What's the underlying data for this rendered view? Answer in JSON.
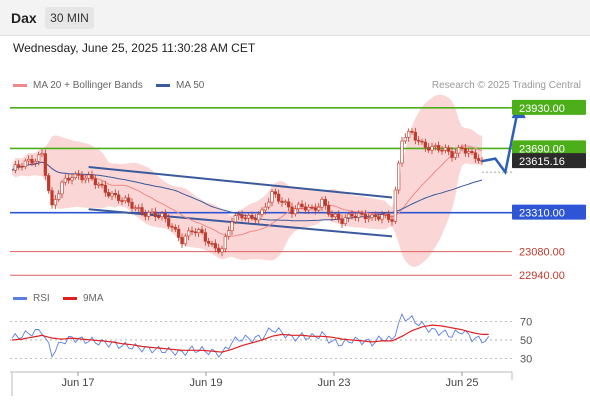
{
  "header": {
    "symbol": "Dax",
    "timeframe": "30 MIN"
  },
  "datetime": "Wednesday, June 25, 2025 11:30:28 AM CET",
  "credit": "Research © 2025 Trading Central",
  "colors": {
    "resistance": "#4caf1a",
    "pivot": "#2d55d6",
    "support": "#e06060",
    "candle": "#c0392b",
    "ma50": "#3a5a9c",
    "bollinger": "#f8c8c8",
    "channel": "#3a5a9c",
    "arrow": "#2d5fb8",
    "rsi": "#5a7fe0",
    "rsi_ma": "#e02020"
  },
  "chart_data": {
    "type": "candlestick",
    "timeframe": "30 MIN",
    "x_labels": [
      "Jun 17",
      "Jun 19",
      "Jun 23",
      "Jun 25"
    ],
    "legend": [
      "MA 20 + Bollinger Bands",
      "MA 50"
    ],
    "ylim": [
      22900,
      24000
    ],
    "levels": [
      {
        "value": 23930.0,
        "label": "23930.00",
        "type": "resistance"
      },
      {
        "value": 23690.0,
        "label": "23690.00",
        "type": "resistance"
      },
      {
        "value": 23615.16,
        "label": "23615.16",
        "type": "last"
      },
      {
        "value": 23310.0,
        "label": "23310.00",
        "type": "pivot"
      },
      {
        "value": 23080.0,
        "label": "23080.00",
        "type": "support"
      },
      {
        "value": 22940.0,
        "label": "22940.00",
        "type": "support"
      }
    ],
    "close_path": [
      [
        0,
        23560
      ],
      [
        3,
        23590
      ],
      [
        6,
        23620
      ],
      [
        9,
        23660
      ],
      [
        12,
        23330
      ],
      [
        15,
        23480
      ],
      [
        18,
        23540
      ],
      [
        21,
        23520
      ],
      [
        24,
        23500
      ],
      [
        27,
        23460
      ],
      [
        30,
        23420
      ],
      [
        33,
        23380
      ],
      [
        36,
        23350
      ],
      [
        39,
        23320
      ],
      [
        42,
        23300
      ],
      [
        45,
        23280
      ],
      [
        48,
        23230
      ],
      [
        51,
        23150
      ],
      [
        54,
        23200
      ],
      [
        57,
        23180
      ],
      [
        60,
        23120
      ],
      [
        63,
        23090
      ],
      [
        66,
        23260
      ],
      [
        69,
        23300
      ],
      [
        72,
        23280
      ],
      [
        75,
        23300
      ],
      [
        78,
        23420
      ],
      [
        81,
        23390
      ],
      [
        84,
        23320
      ],
      [
        87,
        23340
      ],
      [
        90,
        23330
      ],
      [
        93,
        23380
      ],
      [
        96,
        23280
      ],
      [
        99,
        23260
      ],
      [
        102,
        23310
      ],
      [
        105,
        23290
      ],
      [
        108,
        23270
      ],
      [
        111,
        23300
      ],
      [
        114,
        23280
      ],
      [
        117,
        23740
      ],
      [
        120,
        23780
      ],
      [
        123,
        23720
      ],
      [
        126,
        23690
      ],
      [
        129,
        23680
      ],
      [
        132,
        23660
      ],
      [
        135,
        23700
      ],
      [
        138,
        23640
      ],
      [
        141,
        23615
      ]
    ],
    "projection": [
      [
        141,
        23615
      ],
      [
        145,
        23630
      ],
      [
        148,
        23550
      ],
      [
        152,
        23940
      ]
    ],
    "channel_upper": [
      [
        23,
        23580
      ],
      [
        114,
        23400
      ]
    ],
    "channel_lower": [
      [
        23,
        23330
      ],
      [
        114,
        23170
      ]
    ],
    "rsi": {
      "ticks": [
        70,
        50,
        30
      ],
      "series": [
        {
          "name": "RSI",
          "values": [
            52,
            55,
            58,
            60,
            35,
            48,
            52,
            50,
            49,
            47,
            46,
            44,
            43,
            41,
            40,
            39,
            38,
            36,
            40,
            39,
            37,
            35,
            48,
            52,
            51,
            53,
            62,
            58,
            52,
            54,
            53,
            56,
            48,
            46,
            50,
            49,
            47,
            52,
            50,
            75,
            72,
            66,
            60,
            58,
            55,
            60,
            52,
            50
          ]
        },
        {
          "name": "9MA",
          "values": [
            50,
            51,
            53,
            55,
            52,
            51,
            52,
            51,
            50,
            49,
            48,
            46,
            45,
            43,
            42,
            41,
            40,
            39,
            39,
            39,
            38,
            37,
            40,
            44,
            47,
            50,
            54,
            56,
            55,
            55,
            54,
            54,
            53,
            51,
            50,
            49,
            48,
            49,
            49,
            54,
            60,
            64,
            66,
            65,
            63,
            61,
            58,
            56
          ]
        }
      ]
    }
  }
}
